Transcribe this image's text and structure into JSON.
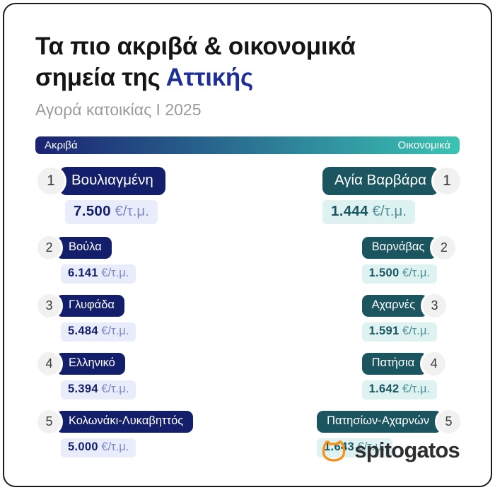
{
  "title": {
    "line1": "Τα πιο ακριβά & οικονομικά",
    "line2_prefix": "σημεία της ",
    "line2_highlight": "Αττικής"
  },
  "subtitle": "Αγορά κατοικίας Ι 2025",
  "brand": {
    "name": "spitogatos",
    "icon": "cat-icon"
  },
  "colors": {
    "navy": "#131f6b",
    "navy_value_bg": "#e9ecfa",
    "navy_unit": "#7f8ac6",
    "teal": "#1a5560",
    "teal_value_bg": "#def2f2",
    "teal_unit": "#4d9097",
    "gradient_start": "#1b2372",
    "gradient_end": "#3ac4b3",
    "title_highlight": "#1e2f96",
    "brand_orange": "#f6921e",
    "badge_bg": "#f1f1f2"
  },
  "chart_data": {
    "type": "table",
    "title": "Τα πιο ακριβά & οικονομικά σημεία της Αττικής",
    "subtitle": "Αγορά κατοικίας Ι 2025",
    "unit": "€/τ.μ.",
    "legend_position": "top",
    "series": [
      {
        "name": "Ακριβά",
        "side": "left",
        "items": [
          {
            "rank": 1,
            "area": "Βουλιαγμένη",
            "value": "7.500"
          },
          {
            "rank": 2,
            "area": "Βούλα",
            "value": "6.141"
          },
          {
            "rank": 3,
            "area": "Γλυφάδα",
            "value": "5.484"
          },
          {
            "rank": 4,
            "area": "Ελληνικό",
            "value": "5.394"
          },
          {
            "rank": 5,
            "area": "Κολωνάκι-Λυκαβηττός",
            "value": "5.000"
          }
        ]
      },
      {
        "name": "Οικονομικά",
        "side": "right",
        "items": [
          {
            "rank": 1,
            "area": "Αγία Βαρβάρα",
            "value": "1.444"
          },
          {
            "rank": 2,
            "area": "Βαρνάβας",
            "value": "1.500"
          },
          {
            "rank": 3,
            "area": "Αχαρνές",
            "value": "1.591"
          },
          {
            "rank": 4,
            "area": "Πατήσια",
            "value": "1.642"
          },
          {
            "rank": 5,
            "area": "Πατησίων-Αχαρνών",
            "value": "1.643"
          }
        ]
      }
    ]
  }
}
